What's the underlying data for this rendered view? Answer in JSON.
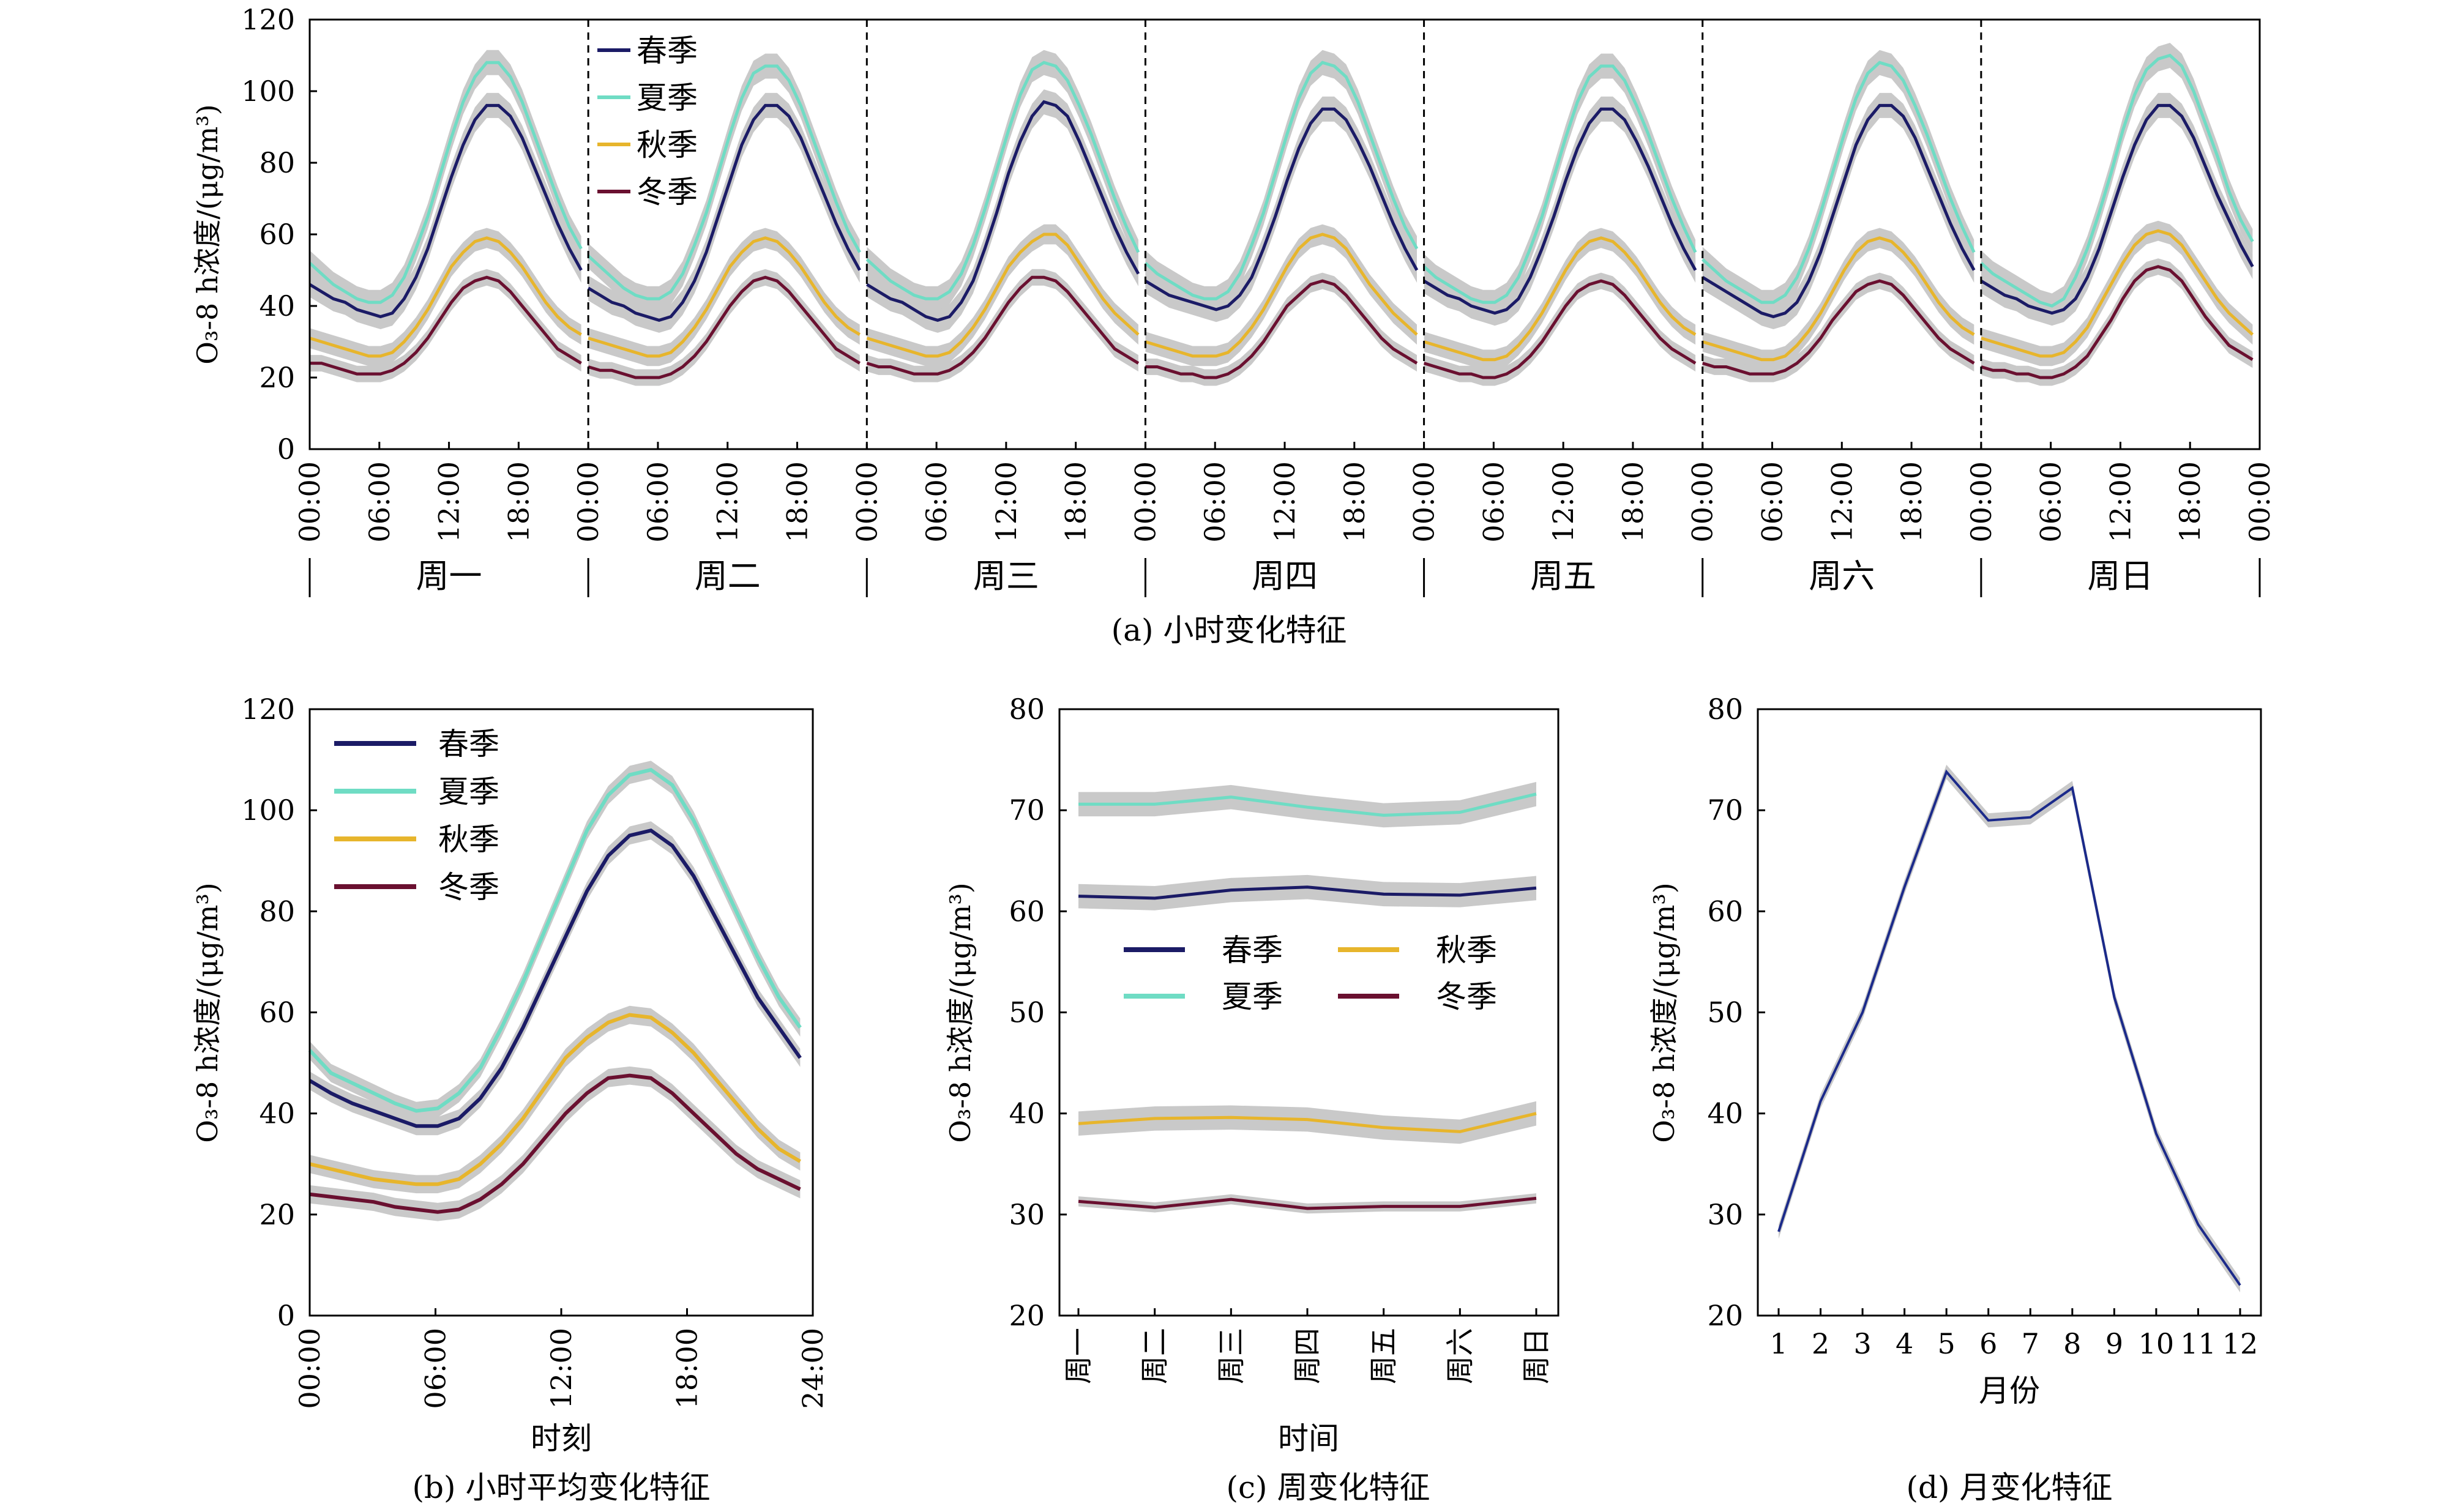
{
  "colors": {
    "spring": "#1b1b66",
    "summer": "#6fdcc4",
    "autumn": "#e7b52c",
    "winter": "#6a1030",
    "band": "#c9c9c9"
  },
  "legend": [
    "春季",
    "夏季",
    "秋季",
    "冬季"
  ],
  "ylabel_a": "O₃-8 h浓度/(μg/m³)",
  "chart_data": [
    {
      "id": "a",
      "type": "line",
      "caption": "(a) 小时变化特征",
      "xticks": [
        "00:00",
        "06:00",
        "12:00",
        "18:00"
      ],
      "xtick_end": "00:00",
      "days": [
        "周一",
        "周二",
        "周三",
        "周四",
        "周五",
        "周六",
        "周日"
      ],
      "ylim": [
        0,
        120
      ],
      "yticks": [
        0,
        20,
        40,
        60,
        80,
        100,
        120
      ],
      "ylabel": "O₃-8 h浓度/(μg/m³)",
      "series": [
        {
          "name": "春季",
          "key": "spring",
          "daily": [
            [
              46,
              44,
              42,
              41,
              39,
              38,
              37,
              38,
              42,
              48,
              56,
              66,
              76,
              85,
              92,
              96,
              96,
              93,
              87,
              79,
              71,
              63,
              56,
              50
            ],
            [
              45,
              43,
              41,
              40,
              38,
              37,
              36,
              37,
              41,
              47,
              55,
              65,
              75,
              85,
              92,
              96,
              96,
              93,
              87,
              79,
              71,
              63,
              56,
              50
            ],
            [
              46,
              44,
              42,
              41,
              39,
              37,
              36,
              37,
              41,
              47,
              56,
              66,
              77,
              86,
              93,
              97,
              96,
              93,
              86,
              78,
              70,
              62,
              55,
              49
            ],
            [
              47,
              45,
              43,
              42,
              41,
              40,
              39,
              40,
              43,
              48,
              56,
              65,
              75,
              84,
              91,
              95,
              95,
              92,
              86,
              79,
              71,
              63,
              56,
              50
            ],
            [
              47,
              45,
              43,
              42,
              40,
              39,
              38,
              39,
              42,
              48,
              56,
              65,
              75,
              84,
              91,
              95,
              95,
              92,
              86,
              79,
              71,
              63,
              56,
              50
            ],
            [
              48,
              46,
              44,
              42,
              40,
              38,
              37,
              38,
              41,
              47,
              55,
              65,
              75,
              85,
              92,
              96,
              96,
              93,
              87,
              79,
              71,
              63,
              56,
              50
            ],
            [
              47,
              45,
              43,
              42,
              40,
              39,
              38,
              39,
              42,
              48,
              56,
              66,
              76,
              85,
              92,
              96,
              96,
              93,
              87,
              79,
              71,
              64,
              57,
              51
            ]
          ]
        },
        {
          "name": "夏季",
          "key": "summer",
          "daily": [
            [
              52,
              49,
              46,
              44,
              42,
              41,
              41,
              43,
              48,
              56,
              65,
              76,
              87,
              97,
              104,
              108,
              108,
              104,
              97,
              88,
              79,
              70,
              62,
              56
            ],
            [
              54,
              51,
              48,
              45,
              43,
              42,
              42,
              44,
              49,
              57,
              66,
              77,
              88,
              98,
              105,
              107,
              107,
              103,
              96,
              87,
              78,
              69,
              61,
              55
            ],
            [
              53,
              50,
              47,
              45,
              43,
              42,
              42,
              44,
              49,
              57,
              67,
              78,
              89,
              99,
              106,
              108,
              107,
              103,
              96,
              88,
              79,
              70,
              62,
              55
            ],
            [
              52,
              49,
              47,
              45,
              43,
              42,
              42,
              44,
              49,
              57,
              66,
              77,
              88,
              98,
              105,
              108,
              107,
              104,
              97,
              88,
              79,
              70,
              62,
              56
            ],
            [
              51,
              48,
              46,
              44,
              42,
              41,
              41,
              43,
              48,
              56,
              65,
              76,
              87,
              97,
              104,
              107,
              107,
              103,
              96,
              88,
              79,
              70,
              62,
              55
            ],
            [
              53,
              50,
              47,
              45,
              43,
              41,
              41,
              43,
              48,
              56,
              66,
              77,
              88,
              98,
              105,
              108,
              107,
              103,
              96,
              88,
              79,
              70,
              62,
              55
            ],
            [
              52,
              49,
              47,
              45,
              43,
              41,
              40,
              42,
              48,
              56,
              66,
              77,
              89,
              99,
              106,
              109,
              110,
              107,
              100,
              91,
              82,
              72,
              64,
              58
            ]
          ]
        },
        {
          "name": "秋季",
          "key": "autumn",
          "daily": [
            [
              31,
              30,
              29,
              28,
              27,
              26,
              26,
              27,
              30,
              34,
              39,
              45,
              51,
              55,
              58,
              59,
              58,
              55,
              51,
              46,
              41,
              37,
              34,
              32
            ],
            [
              31,
              30,
              29,
              28,
              27,
              26,
              26,
              27,
              30,
              34,
              39,
              45,
              51,
              55,
              58,
              59,
              58,
              55,
              51,
              46,
              41,
              37,
              34,
              32
            ],
            [
              31,
              30,
              29,
              28,
              27,
              26,
              26,
              27,
              30,
              34,
              39,
              45,
              51,
              55,
              58,
              60,
              60,
              57,
              52,
              47,
              42,
              38,
              35,
              32
            ],
            [
              30,
              29,
              28,
              27,
              26,
              26,
              26,
              27,
              30,
              34,
              39,
              45,
              51,
              56,
              59,
              60,
              59,
              56,
              51,
              46,
              42,
              38,
              35,
              32
            ],
            [
              30,
              29,
              28,
              27,
              26,
              25,
              25,
              26,
              29,
              33,
              38,
              44,
              50,
              55,
              58,
              59,
              58,
              55,
              51,
              46,
              41,
              37,
              34,
              32
            ],
            [
              30,
              29,
              28,
              27,
              26,
              25,
              25,
              26,
              29,
              33,
              38,
              44,
              50,
              55,
              58,
              59,
              58,
              55,
              51,
              46,
              41,
              37,
              34,
              32
            ],
            [
              31,
              30,
              29,
              28,
              27,
              26,
              26,
              27,
              30,
              34,
              40,
              46,
              52,
              57,
              60,
              61,
              60,
              57,
              52,
              47,
              42,
              38,
              35,
              32
            ]
          ]
        },
        {
          "name": "冬季",
          "key": "winter",
          "daily": [
            [
              24,
              24,
              23,
              22,
              21,
              21,
              21,
              22,
              24,
              27,
              31,
              36,
              41,
              45,
              47,
              48,
              47,
              44,
              40,
              36,
              32,
              28,
              26,
              24
            ],
            [
              23,
              22,
              22,
              21,
              20,
              20,
              20,
              21,
              23,
              26,
              30,
              35,
              40,
              44,
              47,
              48,
              47,
              44,
              40,
              36,
              32,
              28,
              26,
              24
            ],
            [
              24,
              23,
              23,
              22,
              21,
              21,
              21,
              22,
              24,
              27,
              31,
              36,
              41,
              45,
              48,
              48,
              47,
              44,
              40,
              36,
              32,
              28,
              26,
              24
            ],
            [
              23,
              23,
              22,
              21,
              21,
              20,
              20,
              21,
              23,
              26,
              30,
              35,
              40,
              43,
              46,
              47,
              46,
              43,
              39,
              35,
              31,
              28,
              26,
              24
            ],
            [
              24,
              23,
              22,
              21,
              21,
              20,
              20,
              21,
              23,
              26,
              30,
              35,
              40,
              44,
              46,
              47,
              46,
              43,
              39,
              35,
              31,
              28,
              26,
              24
            ],
            [
              24,
              23,
              23,
              22,
              21,
              21,
              21,
              22,
              24,
              27,
              31,
              36,
              40,
              44,
              46,
              47,
              46,
              43,
              39,
              35,
              31,
              28,
              26,
              24
            ],
            [
              23,
              22,
              22,
              21,
              21,
              20,
              20,
              21,
              23,
              26,
              31,
              36,
              42,
              47,
              50,
              51,
              50,
              47,
              42,
              37,
              33,
              29,
              27,
              25
            ]
          ]
        }
      ]
    },
    {
      "id": "b",
      "type": "line",
      "caption": "(b) 小时平均变化特征",
      "xlabel": "时刻",
      "xticks": [
        "00:00",
        "06:00",
        "12:00",
        "18:00",
        "24:00"
      ],
      "ylim": [
        0,
        120
      ],
      "yticks": [
        0,
        20,
        40,
        60,
        80,
        100,
        120
      ],
      "ylabel": "O₃-8 h浓度/(μg/m³)",
      "series": [
        {
          "name": "春季",
          "key": "spring",
          "values": [
            46.5,
            44,
            42,
            40.5,
            39,
            37.5,
            37.5,
            39,
            43,
            49,
            57,
            66,
            75,
            84,
            91,
            95,
            96,
            93,
            87,
            79,
            71,
            63,
            57,
            51
          ]
        },
        {
          "name": "夏季",
          "key": "summer",
          "values": [
            52.5,
            48,
            46,
            44,
            42,
            40.5,
            41,
            44,
            49,
            57,
            66,
            76,
            86,
            96,
            103,
            107,
            108,
            105,
            98,
            89,
            80,
            71,
            63,
            57
          ]
        },
        {
          "name": "秋季",
          "key": "autumn",
          "values": [
            30,
            29,
            28,
            27,
            26.5,
            26,
            26,
            27,
            30,
            34,
            39,
            45,
            51,
            55,
            58,
            59.5,
            59,
            56,
            52,
            47,
            42,
            37,
            33,
            30.5
          ]
        },
        {
          "name": "冬季",
          "key": "winter",
          "values": [
            24,
            23.5,
            23,
            22.5,
            21.5,
            21,
            20.5,
            21,
            23,
            26,
            30,
            35,
            40,
            44,
            47,
            47.5,
            47,
            44,
            40,
            36,
            32,
            29,
            27,
            25
          ]
        }
      ]
    },
    {
      "id": "c",
      "type": "line",
      "caption": "(c) 周变化特征",
      "xlabel": "时间",
      "categories": [
        "周一",
        "周二",
        "周三",
        "周四",
        "周五",
        "周六",
        "周日"
      ],
      "ylim": [
        20,
        80
      ],
      "yticks": [
        20,
        30,
        40,
        50,
        60,
        70,
        80
      ],
      "ylabel": "O₃-8 h浓度/(μg/m³)",
      "series": [
        {
          "name": "春季",
          "key": "spring",
          "values": [
            61.5,
            61.3,
            62.1,
            62.4,
            61.7,
            61.6,
            62.3
          ]
        },
        {
          "name": "夏季",
          "key": "summer",
          "values": [
            70.6,
            70.6,
            71.3,
            70.3,
            69.5,
            69.8,
            71.6
          ]
        },
        {
          "name": "秋季",
          "key": "autumn",
          "values": [
            39.0,
            39.5,
            39.6,
            39.4,
            38.6,
            38.2,
            40.0
          ]
        },
        {
          "name": "冬季",
          "key": "winter",
          "values": [
            31.3,
            30.7,
            31.5,
            30.6,
            30.8,
            30.8,
            31.6
          ]
        }
      ]
    },
    {
      "id": "d",
      "type": "line",
      "caption": "(d) 月变化特征",
      "xlabel": "月份",
      "categories": [
        "1",
        "2",
        "3",
        "4",
        "5",
        "6",
        "7",
        "8",
        "9",
        "10",
        "11",
        "12"
      ],
      "ylim": [
        20,
        80
      ],
      "yticks": [
        20,
        30,
        40,
        50,
        60,
        70,
        80
      ],
      "ylabel": "O₃-8 h浓度/(μg/m³)",
      "series": [
        {
          "key": "spring",
          "values": [
            28.3,
            41.2,
            50.0,
            62.4,
            73.8,
            69.0,
            69.3,
            72.2,
            51.5,
            38.0,
            29.0,
            23.0
          ]
        }
      ]
    }
  ]
}
